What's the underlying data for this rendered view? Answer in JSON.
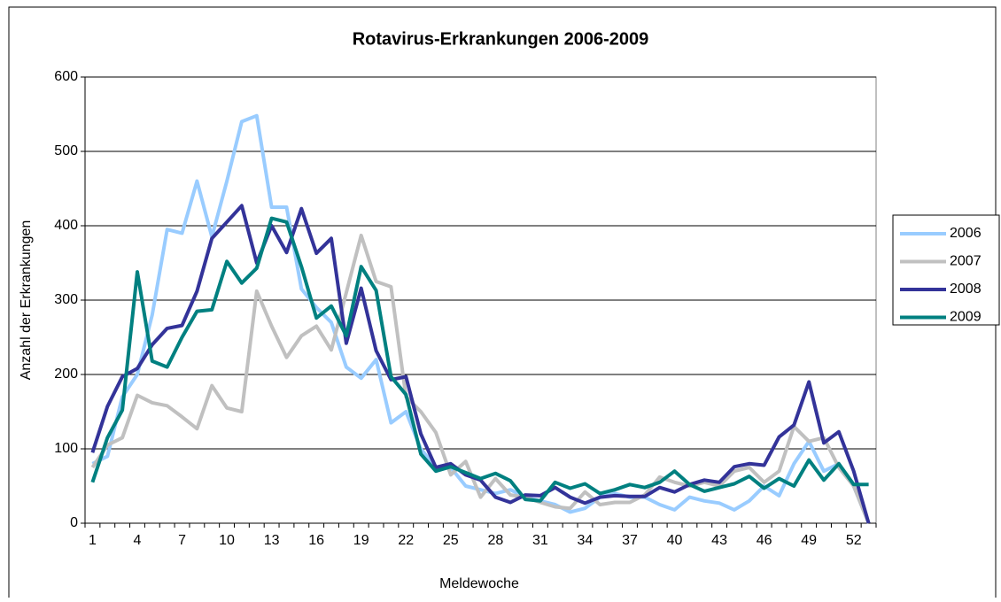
{
  "chart_data": {
    "type": "line",
    "title": "Rotavirus-Erkrankungen 2006-2009",
    "x_label": "Meldewoche",
    "y_label": "Anzahl der Erkrankungen",
    "categories": [
      1,
      null,
      null,
      4,
      null,
      null,
      7,
      null,
      null,
      10,
      null,
      null,
      13,
      null,
      null,
      16,
      null,
      null,
      19,
      null,
      null,
      22,
      null,
      null,
      25,
      null,
      null,
      28,
      null,
      null,
      31,
      null,
      null,
      34,
      null,
      null,
      37,
      null,
      null,
      40,
      null,
      null,
      43,
      null,
      null,
      46,
      null,
      null,
      49,
      null,
      null,
      52,
      null
    ],
    "ylim": [
      0,
      600
    ],
    "yticks": [
      0,
      100,
      200,
      300,
      400,
      500,
      600
    ],
    "grid": true,
    "legend": "right",
    "series": [
      {
        "name": "2006",
        "color": "#99ccff",
        "values": [
          80,
          90,
          170,
          200,
          280,
          395,
          390,
          460,
          385,
          460,
          540,
          548,
          425,
          425,
          315,
          290,
          270,
          210,
          195,
          220,
          135,
          150,
          100,
          75,
          75,
          50,
          45,
          40,
          45,
          35,
          30,
          25,
          15,
          20,
          35,
          40,
          35,
          35,
          25,
          18,
          35,
          30,
          27,
          18,
          30,
          50,
          37,
          80,
          110,
          70,
          80,
          50,
          0
        ]
      },
      {
        "name": "2007",
        "color": "#c0c0c0",
        "values": [
          75,
          105,
          115,
          172,
          162,
          158,
          143,
          127,
          185,
          155,
          150,
          312,
          265,
          223,
          252,
          265,
          233,
          310,
          387,
          325,
          318,
          170,
          150,
          122,
          65,
          83,
          35,
          60,
          38,
          35,
          28,
          22,
          20,
          42,
          25,
          28,
          28,
          38,
          62,
          55,
          50,
          55,
          50,
          70,
          75,
          55,
          70,
          130,
          110,
          115,
          75,
          50,
          0
        ]
      },
      {
        "name": "2008",
        "color": "#333399",
        "values": [
          95,
          157,
          197,
          208,
          240,
          262,
          266,
          312,
          383,
          405,
          427,
          350,
          400,
          364,
          423,
          363,
          383,
          242,
          316,
          232,
          193,
          197,
          120,
          75,
          80,
          65,
          58,
          35,
          28,
          38,
          37,
          48,
          35,
          27,
          35,
          37,
          36,
          36,
          48,
          42,
          52,
          58,
          55,
          76,
          80,
          78,
          116,
          132,
          190,
          108,
          123,
          70,
          0
        ]
      },
      {
        "name": "2009",
        "color": "#008080",
        "values": [
          55,
          115,
          152,
          338,
          218,
          210,
          250,
          285,
          287,
          352,
          323,
          343,
          410,
          405,
          345,
          276,
          292,
          252,
          345,
          313,
          197,
          173,
          93,
          70,
          76,
          68,
          60,
          67,
          57,
          32,
          30,
          55,
          47,
          53,
          40,
          45,
          52,
          48,
          55,
          70,
          52,
          43,
          48,
          53,
          63,
          47,
          60,
          50,
          85,
          58,
          80,
          52,
          52
        ]
      }
    ]
  }
}
